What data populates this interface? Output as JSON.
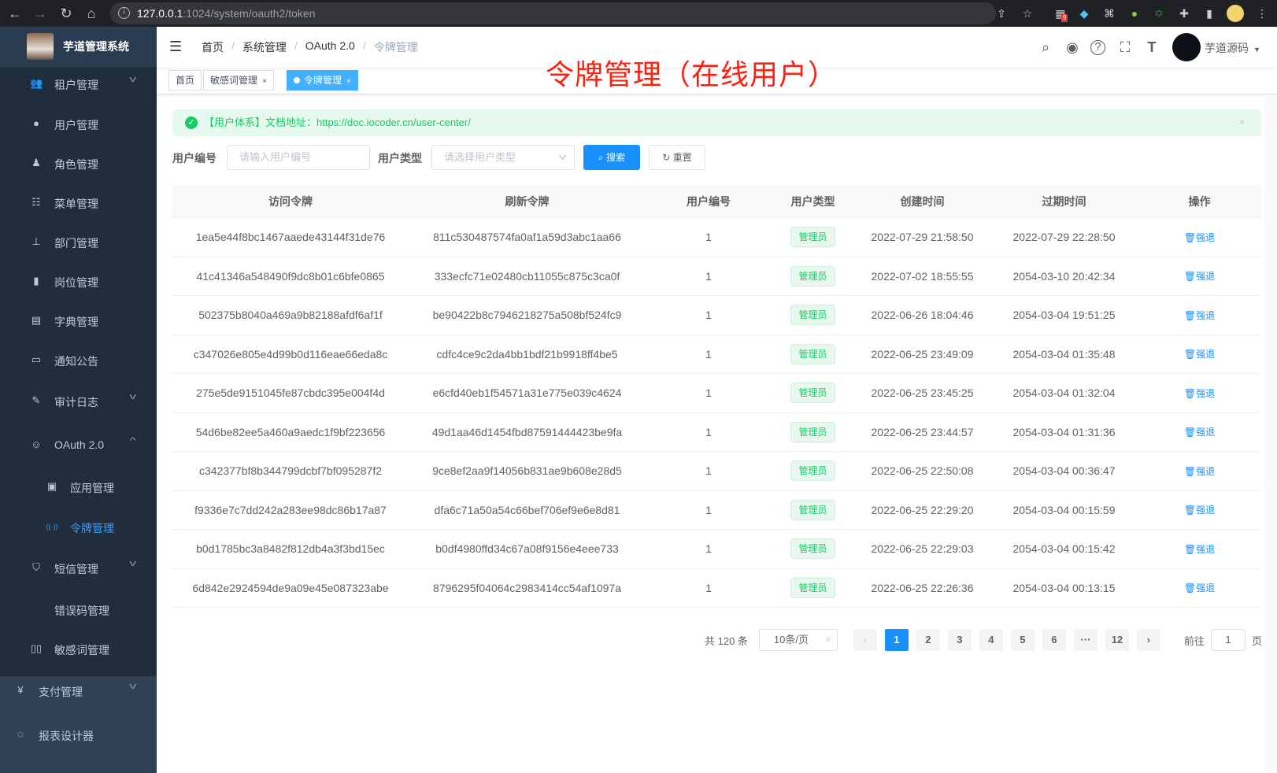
{
  "browser": {
    "url_host": "127.0.0.1",
    "url_path": ":1024/system/oauth2/token",
    "ext_badge": "9"
  },
  "sidebar": {
    "title": "芋道管理系统",
    "items": [
      {
        "label": "租户管理",
        "icon": "users-icon",
        "chevron": "down"
      },
      {
        "label": "用户管理",
        "icon": "user-icon"
      },
      {
        "label": "角色管理",
        "icon": "peoples-icon"
      },
      {
        "label": "菜单管理",
        "icon": "tree-table-icon"
      },
      {
        "label": "部门管理",
        "icon": "tree-icon"
      },
      {
        "label": "岗位管理",
        "icon": "post-icon"
      },
      {
        "label": "字典管理",
        "icon": "dict-icon"
      },
      {
        "label": "通知公告",
        "icon": "message-icon"
      },
      {
        "label": "审计日志",
        "icon": "log-icon",
        "chevron": "down"
      },
      {
        "label": "OAuth 2.0",
        "icon": "robot-icon",
        "chevron": "up"
      },
      {
        "label": "应用管理",
        "icon": "briefcase-icon",
        "sub": true
      },
      {
        "label": "令牌管理",
        "icon": "online-icon",
        "sub": true,
        "active": true
      },
      {
        "label": "短信管理",
        "icon": "shield-icon",
        "chevron": "down"
      },
      {
        "label": "错误码管理",
        "icon": "code-icon"
      },
      {
        "label": "敏感词管理",
        "icon": "book-icon"
      },
      {
        "label": "支付管理",
        "icon": "yen-icon",
        "chevron": "down"
      },
      {
        "label": "报表设计器",
        "icon": "report-icon"
      }
    ]
  },
  "navbar": {
    "breadcrumb": [
      "首页",
      "系统管理",
      "OAuth 2.0",
      "令牌管理"
    ],
    "username": "芋道源码"
  },
  "tags": [
    {
      "label": "首页"
    },
    {
      "label": "敏感词管理",
      "close": "×"
    },
    {
      "label": "令牌管理",
      "close": "×",
      "active": true
    }
  ],
  "annotation": "令牌管理（在线用户）",
  "alert": {
    "text": "【用户体系】文档地址：https://doc.iocoder.cn/user-center/",
    "close": "×"
  },
  "filters": {
    "user_id_label": "用户编号",
    "user_id_placeholder": "请输入用户编号",
    "user_type_label": "用户类型",
    "user_type_placeholder": "请选择用户类型",
    "search": "搜索",
    "reset": "重置"
  },
  "table": {
    "headers": [
      "访问令牌",
      "刷新令牌",
      "用户编号",
      "用户类型",
      "创建时间",
      "过期时间",
      "操作"
    ],
    "action": "强退",
    "rows": [
      [
        "1ea5e44f8bc1467aaede43144f31de76",
        "811c530487574fa0af1a59d3abc1aa66",
        "1",
        "管理员",
        "2022-07-29 21:58:50",
        "2022-07-29 22:28:50"
      ],
      [
        "41c41346a548490f9dc8b01c6bfe0865",
        "333ecfc71e02480cb11055c875c3ca0f",
        "1",
        "管理员",
        "2022-07-02 18:55:55",
        "2054-03-10 20:42:34"
      ],
      [
        "502375b8040a469a9b82188afdf6af1f",
        "be90422b8c7946218275a508bf524fc9",
        "1",
        "管理员",
        "2022-06-26 18:04:46",
        "2054-03-04 19:51:25"
      ],
      [
        "c347026e805e4d99b0d116eae66eda8c",
        "cdfc4ce9c2da4bb1bdf21b9918ff4be5",
        "1",
        "管理员",
        "2022-06-25 23:49:09",
        "2054-03-04 01:35:48"
      ],
      [
        "275e5de9151045fe87cbdc395e004f4d",
        "e6cfd40eb1f54571a31e775e039c4624",
        "1",
        "管理员",
        "2022-06-25 23:45:25",
        "2054-03-04 01:32:04"
      ],
      [
        "54d6be82ee5a460a9aedc1f9bf223656",
        "49d1aa46d1454fbd87591444423be9fa",
        "1",
        "管理员",
        "2022-06-25 23:44:57",
        "2054-03-04 01:31:36"
      ],
      [
        "c342377bf8b344799dcbf7bf095287f2",
        "9ce8ef2aa9f14056b831ae9b608e28d5",
        "1",
        "管理员",
        "2022-06-25 22:50:08",
        "2054-03-04 00:36:47"
      ],
      [
        "f9336e7c7dd242a283ee98dc86b17a87",
        "dfa6c71a50a54c66bef706ef9e6e8d81",
        "1",
        "管理员",
        "2022-06-25 22:29:20",
        "2054-03-04 00:15:59"
      ],
      [
        "b0d1785bc3a8482f812db4a3f3bd15ec",
        "b0df4980ffd34c67a08f9156e4eee733",
        "1",
        "管理员",
        "2022-06-25 22:29:03",
        "2054-03-04 00:15:42"
      ],
      [
        "6d842e2924594de9a09e45e087323abe",
        "8796295f04064c2983414cc54af1097a",
        "1",
        "管理员",
        "2022-06-25 22:26:36",
        "2054-03-04 00:13:15"
      ]
    ]
  },
  "pagination": {
    "total": "共 120 条",
    "page_size": "10条/页",
    "pages": [
      "1",
      "2",
      "3",
      "4",
      "5",
      "6",
      "···",
      "12"
    ],
    "current": "1",
    "goto_label": "前往",
    "goto_value": "1",
    "goto_suffix": "页"
  },
  "colors": {
    "primary": "#1890ff",
    "sidebar": "#1f2d3d",
    "success": "#13ce66",
    "annotation": "#ff1f0f"
  }
}
